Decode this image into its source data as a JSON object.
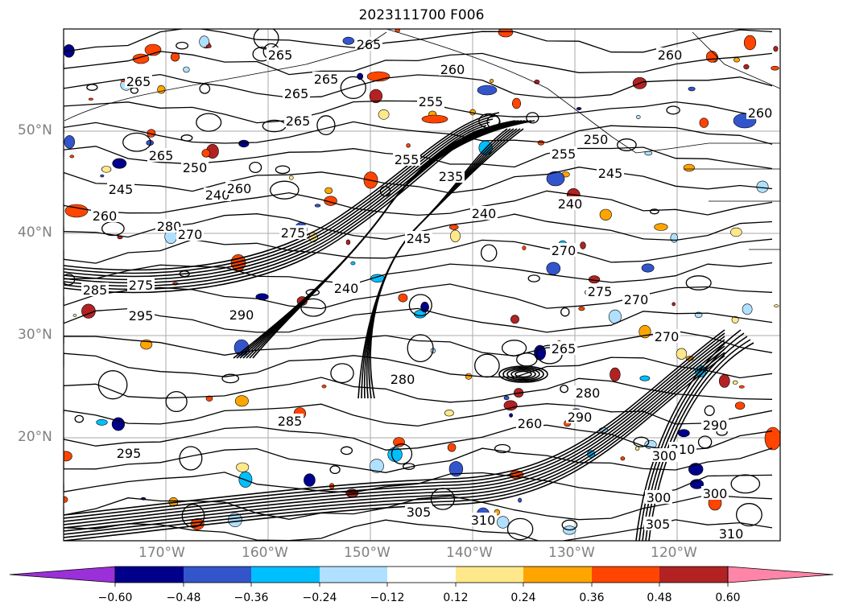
{
  "title": "2023111700 F006",
  "lat_labels": [
    "50°N",
    "40°N",
    "30°N",
    "20°N"
  ],
  "lon_labels": [
    "170°W",
    "160°W",
    "150°W",
    "140°W",
    "130°W",
    "120°W"
  ],
  "colorbar": {
    "ticks": [
      "−0.60",
      "−0.48",
      "−0.36",
      "−0.24",
      "−0.12",
      "0.12",
      "0.24",
      "0.36",
      "0.48",
      "0.60"
    ],
    "colors": [
      "#9b30d8",
      "#00008b",
      "#3355cc",
      "#00bfff",
      "#b0e0ff",
      "#ffffff",
      "#ffe88a",
      "#ffa500",
      "#ff4500",
      "#b22222",
      "#ff85a8"
    ]
  },
  "contour_labels": [
    "265",
    "265",
    "265",
    "265",
    "265",
    "265",
    "265",
    "260",
    "260",
    "255",
    "260",
    "255",
    "250",
    "245",
    "240",
    "260",
    "260",
    "280",
    "270",
    "275",
    "240",
    "255",
    "250",
    "245",
    "240",
    "245",
    "235",
    "270",
    "275",
    "285",
    "295",
    "290",
    "240",
    "275",
    "270",
    "270",
    "265",
    "280",
    "285",
    "260",
    "295",
    "290",
    "300",
    "305",
    "310",
    "310",
    "300",
    "305",
    "300",
    "290",
    "280",
    "310"
  ],
  "map": {
    "land_color": "#ffffff",
    "grid_color": "#aaaaaa",
    "contour_color": "#000000"
  }
}
